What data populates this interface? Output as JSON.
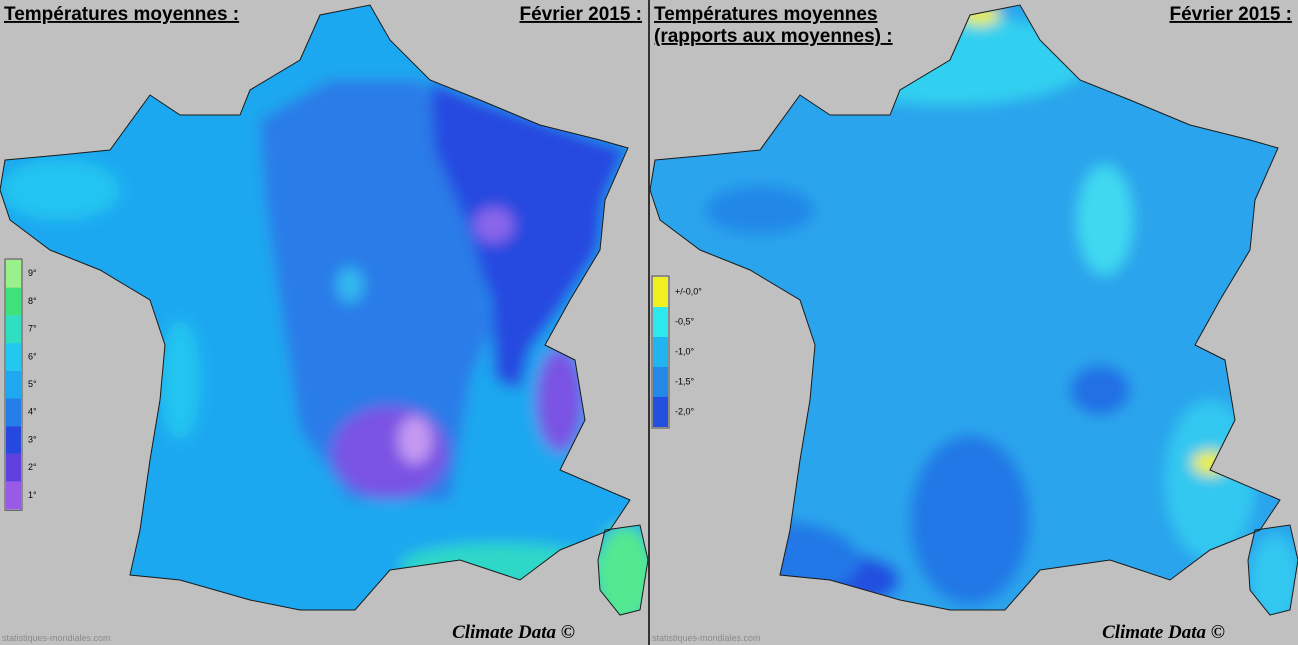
{
  "panels": [
    {
      "title_lines": [
        "Températures moyennes :"
      ],
      "date": "Février 2015 :",
      "legend": [
        {
          "label": "9°",
          "color": "#9af08a"
        },
        {
          "label": "8°",
          "color": "#40e07a"
        },
        {
          "label": "7°",
          "color": "#2ee0c0"
        },
        {
          "label": "6°",
          "color": "#22c8f0"
        },
        {
          "label": "5°",
          "color": "#1ea8f0"
        },
        {
          "label": "4°",
          "color": "#2480e8"
        },
        {
          "label": "3°",
          "color": "#2448e0"
        },
        {
          "label": "2°",
          "color": "#6040e0"
        },
        {
          "label": "1°",
          "color": "#9a5ae8"
        }
      ],
      "credit": "Climate Data ©",
      "source": "statistiques-mondiales.com"
    },
    {
      "title_lines": [
        "Températures moyennes",
        "(rapports aux moyennes) :"
      ],
      "date": "Février 2015 :",
      "legend": [
        {
          "label": "+/-0,0°",
          "color": "#f0f020"
        },
        {
          "label": "-0,5°",
          "color": "#2ee8f0"
        },
        {
          "label": "-1,0°",
          "color": "#22b4f0"
        },
        {
          "label": "-1,5°",
          "color": "#2488e8"
        },
        {
          "label": "-2,0°",
          "color": "#2450e0"
        }
      ],
      "credit": "Climate Data ©",
      "source": "statistiques-mondiales.com"
    }
  ]
}
